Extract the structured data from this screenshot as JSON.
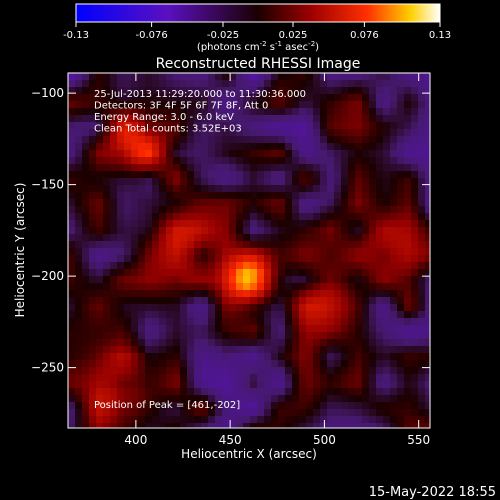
{
  "chart_data": {
    "type": "heatmap",
    "title": "Reconstructed RHESSI Image",
    "xlabel": "Heliocentric X (arcsec)",
    "ylabel": "Heliocentric Y (arcsec)",
    "xlim": [
      364,
      556
    ],
    "ylim": [
      -283,
      -89
    ],
    "x_ticks": [
      400,
      450,
      500,
      550
    ],
    "y_ticks": [
      -100,
      -150,
      -200,
      -250
    ],
    "colorbar": {
      "min": -0.13,
      "max": 0.13,
      "tick_labels": [
        "-0.13",
        "-0.076",
        "-0.025",
        "0.025",
        "0.076",
        "0.13"
      ],
      "unit_base": "(photons cm",
      "unit_exp1": "-2",
      "unit_mid": " s",
      "unit_exp2": "-1",
      "unit_mid2": " asec",
      "unit_exp3": "-2",
      "unit_end": ")"
    },
    "annotations": [
      "25-Jul-2013 11:29:20.000 to 11:30:36.000",
      "Detectors: 3F 4F 5F 6F 7F 8F, Att 0",
      "Energy Range: 3.0 - 6.0 keV",
      "Clean     Total counts: 3.52E+03"
    ],
    "peak_label": "Position of Peak = [461,-202]",
    "peak": {
      "x": 461,
      "y": -202,
      "value": 0.13
    },
    "sources": [
      {
        "x": 461,
        "y": -202,
        "value": 0.12
      },
      {
        "x": 400,
        "y": -128,
        "value": 0.07
      },
      {
        "x": 392,
        "y": -262,
        "value": 0.06
      },
      {
        "x": 425,
        "y": -185,
        "value": 0.05
      },
      {
        "x": 500,
        "y": -212,
        "value": 0.05
      },
      {
        "x": 530,
        "y": -185,
        "value": 0.04
      }
    ],
    "grid": false
  },
  "footer": {
    "timestamp": "15-May-2022 18:55"
  }
}
